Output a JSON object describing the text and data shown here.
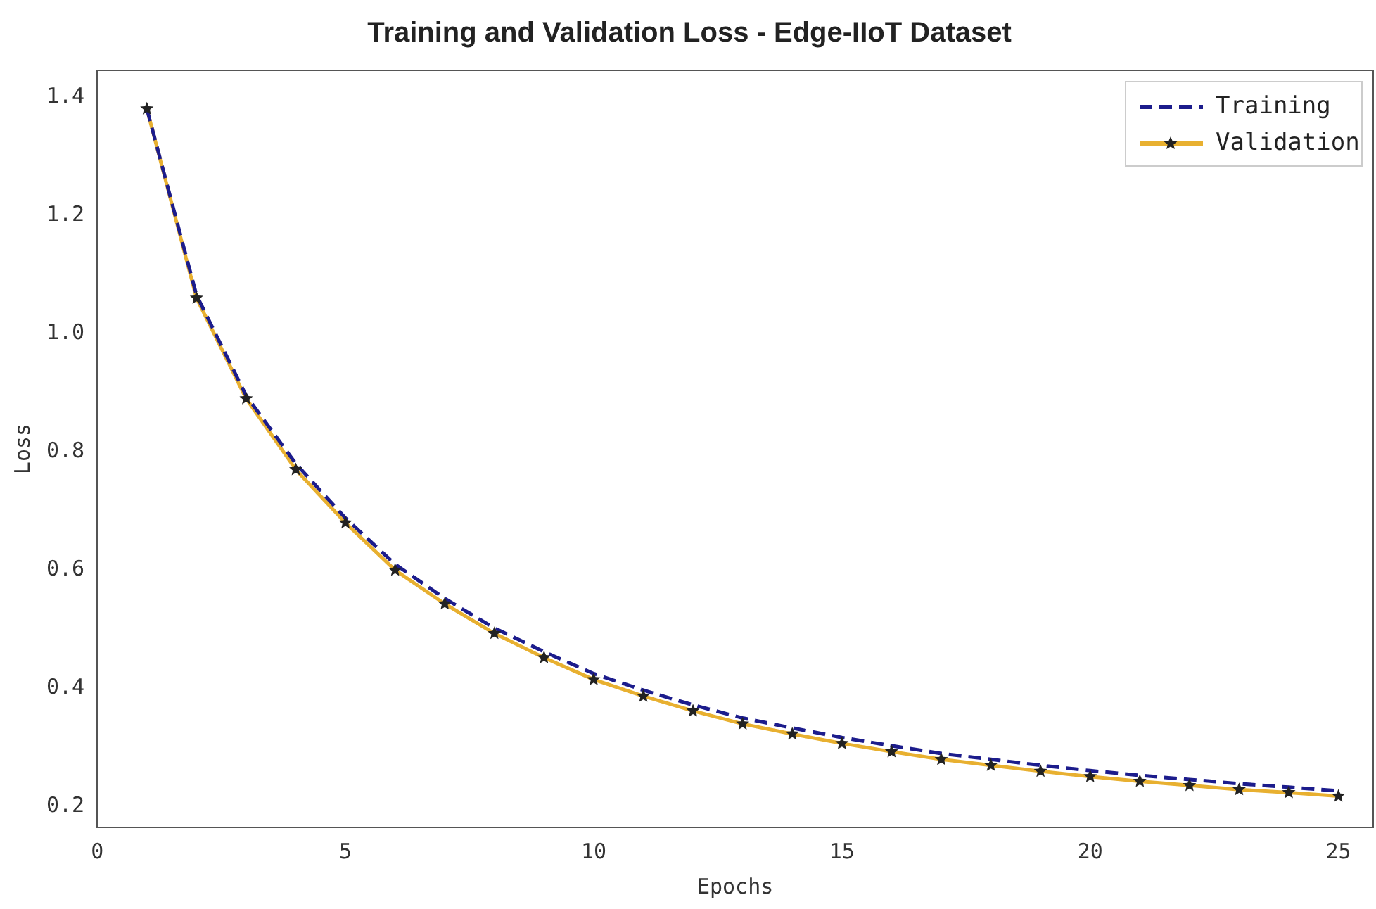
{
  "chart_data": {
    "type": "line",
    "title": "Training and Validation Loss - Edge-IIoT Dataset",
    "xlabel": "Epochs",
    "ylabel": "Loss",
    "x": [
      1,
      2,
      3,
      4,
      5,
      6,
      7,
      8,
      9,
      10,
      11,
      12,
      13,
      14,
      15,
      16,
      17,
      18,
      19,
      20,
      21,
      22,
      23,
      24,
      25
    ],
    "series": [
      {
        "name": "Training",
        "color": "#1c1c8c",
        "line_style": "dashed",
        "marker": "none",
        "values": [
          1.38,
          1.065,
          0.895,
          0.78,
          0.688,
          0.61,
          0.552,
          0.502,
          0.462,
          0.425,
          0.397,
          0.372,
          0.35,
          0.333,
          0.317,
          0.303,
          0.29,
          0.28,
          0.27,
          0.261,
          0.253,
          0.246,
          0.239,
          0.233,
          0.227
        ]
      },
      {
        "name": "Validation",
        "color": "#e8b030",
        "line_style": "solid",
        "marker": "star",
        "values": [
          1.38,
          1.06,
          0.89,
          0.77,
          0.68,
          0.6,
          0.543,
          0.493,
          0.452,
          0.415,
          0.387,
          0.362,
          0.34,
          0.323,
          0.307,
          0.293,
          0.28,
          0.27,
          0.26,
          0.251,
          0.243,
          0.236,
          0.229,
          0.224,
          0.218
        ]
      }
    ],
    "xlim": [
      0,
      25.7
    ],
    "xticks": [
      0,
      5,
      10,
      15,
      20,
      25
    ],
    "ylim": [
      0.165,
      1.445
    ],
    "yticks": [
      {
        "value": 0.2,
        "label": "0.2"
      },
      {
        "value": 0.4,
        "label": "0.4"
      },
      {
        "value": 0.6,
        "label": "0.6"
      },
      {
        "value": 0.8,
        "label": "0.8"
      },
      {
        "value": 1,
        "label": "1.0"
      },
      {
        "value": 1.2,
        "label": "1.2"
      },
      {
        "value": 1.4,
        "label": "1.4"
      }
    ],
    "grid": false,
    "legend": "top right"
  }
}
